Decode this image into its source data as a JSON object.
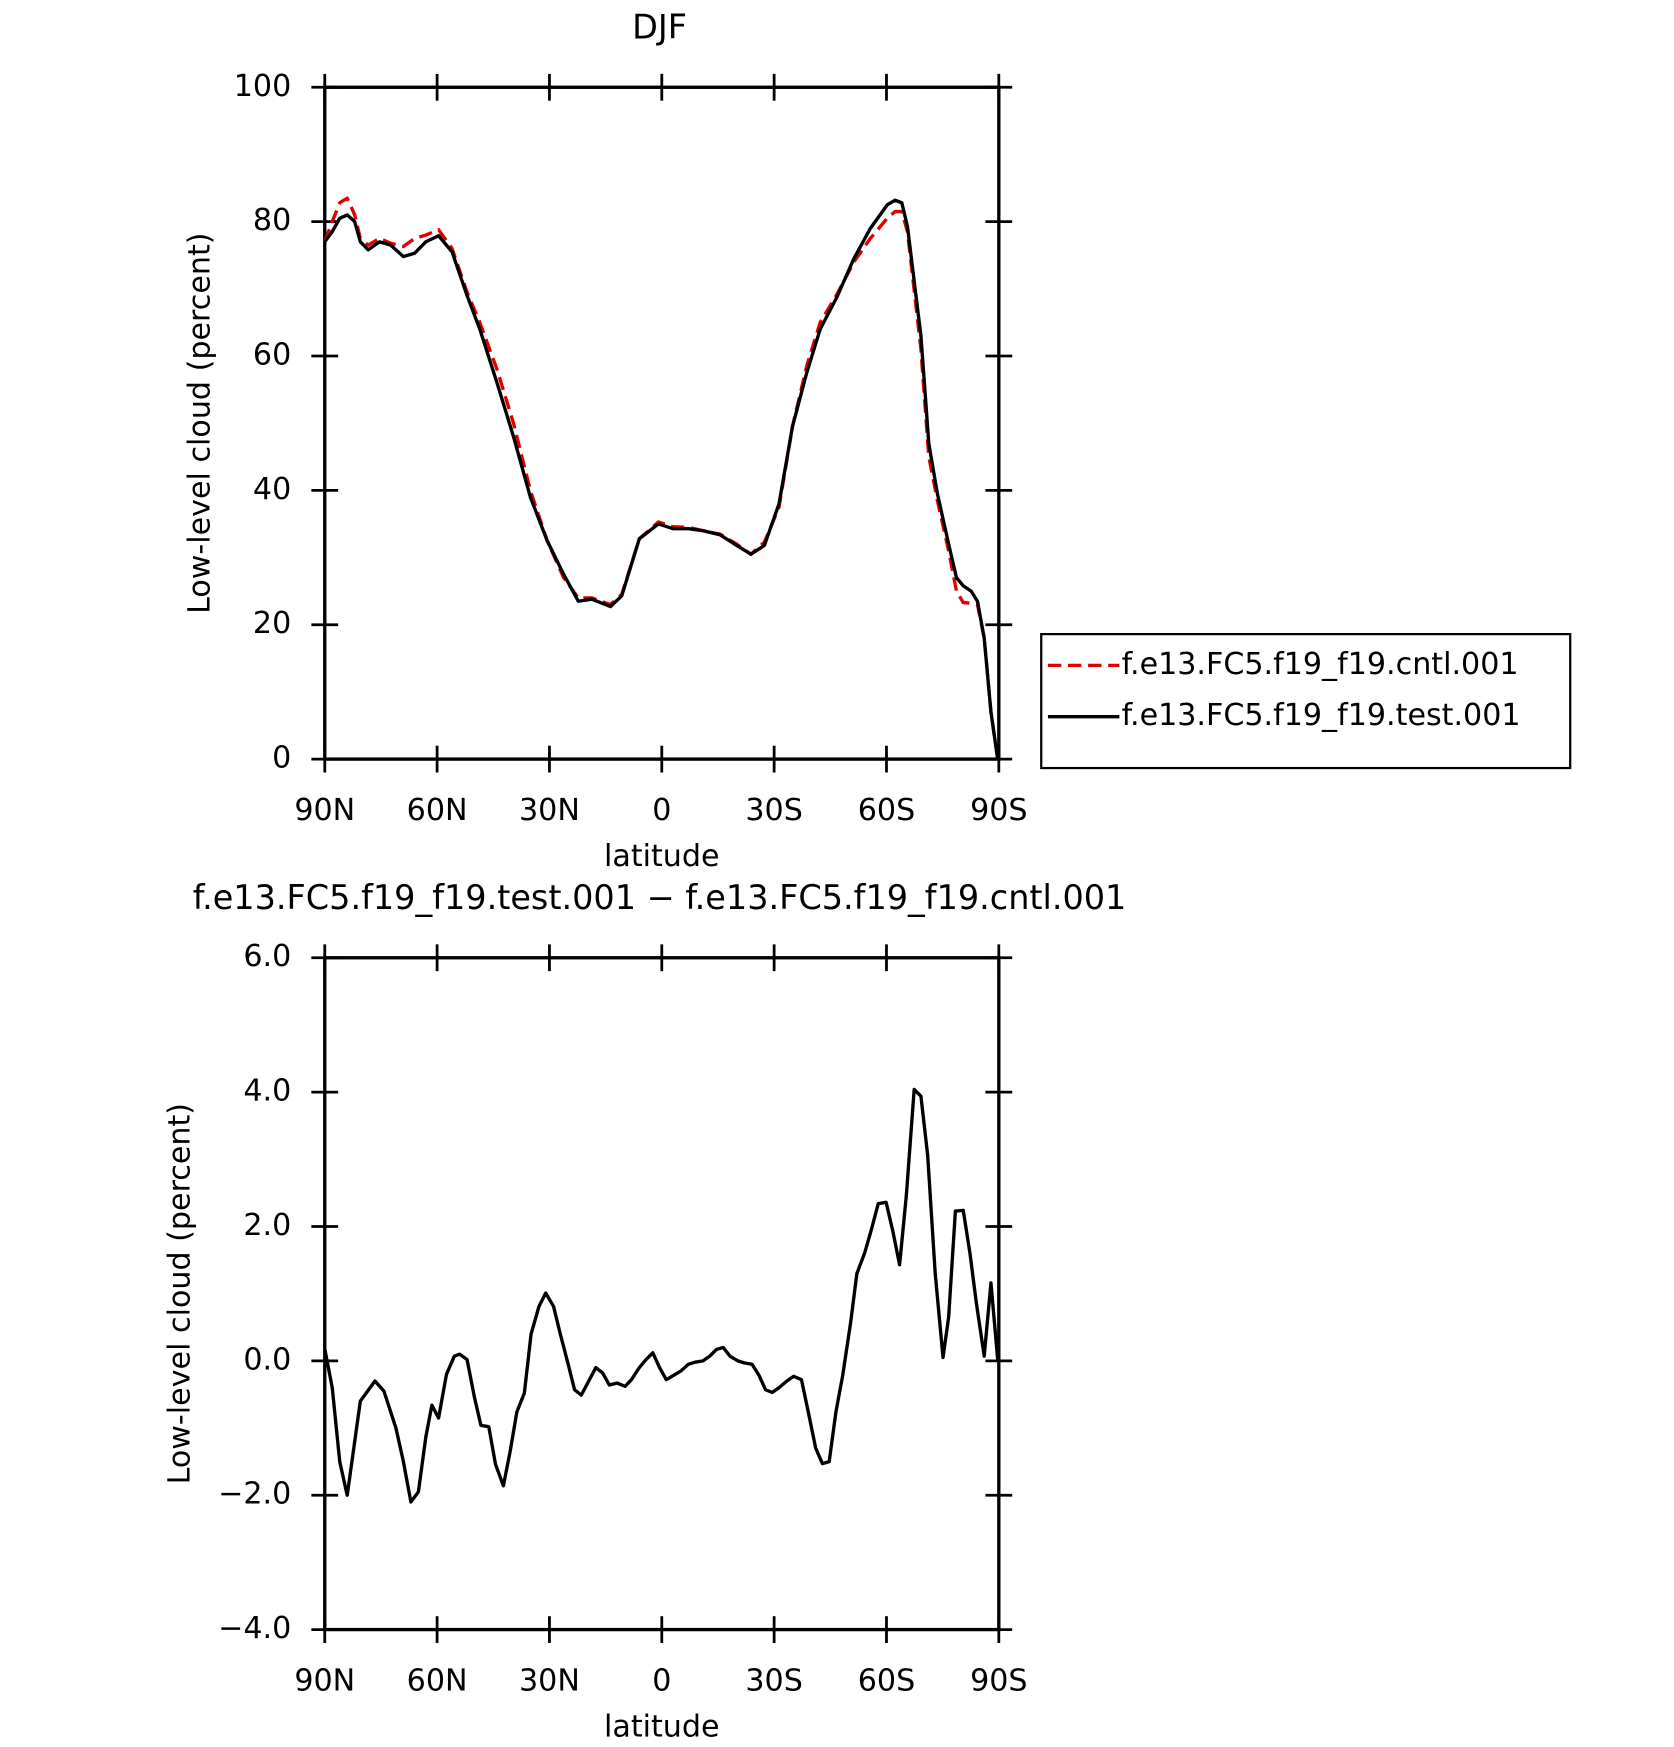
{
  "chart_data": [
    {
      "type": "line",
      "title": "DJF",
      "xlabel": "latitude",
      "ylabel": "Low-level cloud (percent)",
      "xlim": [
        90,
        -90
      ],
      "ylim": [
        0,
        100
      ],
      "xticks": [
        {
          "value": 90,
          "label": "90N"
        },
        {
          "value": 60,
          "label": "60N"
        },
        {
          "value": 30,
          "label": "30N"
        },
        0,
        {
          "value": -30,
          "label": "30S"
        },
        {
          "value": -60,
          "label": "60S"
        },
        {
          "value": -90,
          "label": "90S"
        }
      ],
      "yticks": [
        0,
        20,
        40,
        60,
        80,
        100
      ],
      "legend": "right",
      "x": [
        90,
        88,
        86,
        84,
        82,
        80.5,
        78.4,
        75.4,
        72.4,
        69,
        66,
        63,
        59.6,
        56,
        52,
        48.6,
        44,
        39.6,
        35.1,
        30.6,
        26.2,
        22.3,
        18.7,
        13.7,
        10.7,
        6,
        0.9,
        -3,
        -7.1,
        -11,
        -15.5,
        -20,
        -23.8,
        -27.4,
        -31.3,
        -34.9,
        -38.7,
        -42.3,
        -46.8,
        -51.3,
        -55.7,
        -60.2,
        -62.3,
        -64.1,
        -65.6,
        -69.2,
        -71.3,
        -73.6,
        -76.6,
        -78.7,
        -80.5,
        -82.6,
        -84.3,
        -86.1,
        -87.9,
        -89.7
      ],
      "series": [
        {
          "name": "f.e13.FC5.f19_f19.cntl.001",
          "color": "#e00000",
          "dashed": true,
          "values": [
            77,
            80,
            82.8,
            83.5,
            81,
            77.5,
            76.5,
            77.5,
            76.8,
            76.3,
            77.5,
            78,
            78.8,
            76,
            69.5,
            65,
            58,
            50,
            40,
            32.5,
            27,
            24,
            24,
            23,
            24.5,
            32.8,
            35.3,
            34.6,
            34.5,
            34,
            33.5,
            32,
            30.5,
            32.3,
            37.5,
            49.5,
            58.5,
            65,
            69.2,
            74,
            77.5,
            80.5,
            81.5,
            81.5,
            78.5,
            61,
            45,
            38.5,
            31,
            25,
            23.3,
            23.2,
            23,
            18,
            7,
            0
          ]
        },
        {
          "name": "f.e13.FC5.f19_f19.test.001",
          "color": "#000000",
          "dashed": false,
          "values": [
            77,
            78.5,
            80.5,
            81,
            80,
            77,
            75.8,
            77,
            76.5,
            74.8,
            75.3,
            77,
            77.9,
            75.5,
            69,
            64,
            56,
            48,
            39,
            32.5,
            27.5,
            23.5,
            23.8,
            22.7,
            24.3,
            32.8,
            35,
            34.3,
            34.3,
            34,
            33.4,
            31.8,
            30.5,
            31.8,
            38,
            49.5,
            57.5,
            64,
            68.8,
            74.5,
            79,
            82.5,
            83.2,
            82.8,
            79.3,
            63,
            47,
            39.5,
            32,
            27,
            25.8,
            25,
            23.5,
            18,
            7,
            0
          ]
        }
      ]
    },
    {
      "type": "line",
      "title": "f.e13.FC5.f19_f19.test.001 − f.e13.FC5.f19_f19.cntl.001",
      "xlabel": "latitude",
      "ylabel": "Low-level cloud (percent)",
      "xlim": [
        90,
        -90
      ],
      "ylim": [
        -4,
        6
      ],
      "xticks": [
        {
          "value": 90,
          "label": "90N"
        },
        {
          "value": 60,
          "label": "60N"
        },
        {
          "value": 30,
          "label": "30N"
        },
        0,
        {
          "value": -30,
          "label": "30S"
        },
        {
          "value": -60,
          "label": "60S"
        },
        {
          "value": -90,
          "label": "90S"
        }
      ],
      "yticks": [
        {
          "value": -4,
          "label": "−4.0"
        },
        {
          "value": -2,
          "label": "−2.0"
        },
        {
          "value": 0,
          "label": "0.0"
        },
        {
          "value": 2,
          "label": "2.0"
        },
        {
          "value": 4,
          "label": "4.0"
        },
        {
          "value": 6,
          "label": "6.0"
        }
      ],
      "color": "#000000",
      "x": [
        90,
        88,
        86,
        84,
        82,
        80.5,
        76.6,
        74.2,
        71,
        69,
        67,
        65,
        63,
        61.4,
        59.6,
        57.5,
        55.4,
        54,
        52,
        50,
        48.3,
        46.2,
        44.4,
        42.3,
        40.5,
        38.7,
        36.7,
        34.9,
        32.8,
        31,
        28.9,
        27.1,
        25,
        23.3,
        21.5,
        19.7,
        17.6,
        15.8,
        14,
        11.9,
        9.8,
        8.1,
        6,
        4.2,
        2.4,
        0.6,
        -1.2,
        -3,
        -5.1,
        -7.1,
        -8.9,
        -11,
        -12.8,
        -14.6,
        -16.4,
        -18.2,
        -20.3,
        -22,
        -24.1,
        -26,
        -27.7,
        -29.5,
        -31.3,
        -33.4,
        -35.2,
        -37.3,
        -39,
        -41.1,
        -42.9,
        -44.7,
        -46.5,
        -48.3,
        -50.4,
        -52.1,
        -54.2,
        -56,
        -57.8,
        -59.9,
        -61.7,
        -63.5,
        -65.3,
        -67.4,
        -69.2,
        -71,
        -73,
        -75.1,
        -76.6,
        -78.4,
        -80.5,
        -82.3,
        -84,
        -86.1,
        -87.9,
        -89.7
      ],
      "values": [
        0.18,
        -0.4,
        -1.5,
        -2.0,
        -1.2,
        -0.6,
        -0.3,
        -0.45,
        -1.0,
        -1.5,
        -2.1,
        -1.95,
        -1.13,
        -0.66,
        -0.85,
        -0.2,
        0.07,
        0.1,
        0.02,
        -0.55,
        -0.96,
        -0.98,
        -1.54,
        -1.86,
        -1.35,
        -0.76,
        -0.48,
        0.4,
        0.81,
        1.01,
        0.81,
        0.4,
        -0.05,
        -0.43,
        -0.51,
        -0.32,
        -0.1,
        -0.18,
        -0.36,
        -0.33,
        -0.38,
        -0.28,
        -0.1,
        0.02,
        0.12,
        -0.1,
        -0.28,
        -0.22,
        -0.15,
        -0.05,
        -0.02,
        0.0,
        0.07,
        0.17,
        0.2,
        0.07,
        0.0,
        -0.03,
        -0.05,
        -0.22,
        -0.43,
        -0.47,
        -0.4,
        -0.3,
        -0.23,
        -0.28,
        -0.73,
        -1.3,
        -1.53,
        -1.5,
        -0.76,
        -0.22,
        0.56,
        1.3,
        1.61,
        1.96,
        2.34,
        2.36,
        1.93,
        1.43,
        2.46,
        4.04,
        3.94,
        3.06,
        1.31,
        0.05,
        0.65,
        2.23,
        2.24,
        1.6,
        0.86,
        0.07,
        1.16,
        0.02
      ]
    }
  ]
}
